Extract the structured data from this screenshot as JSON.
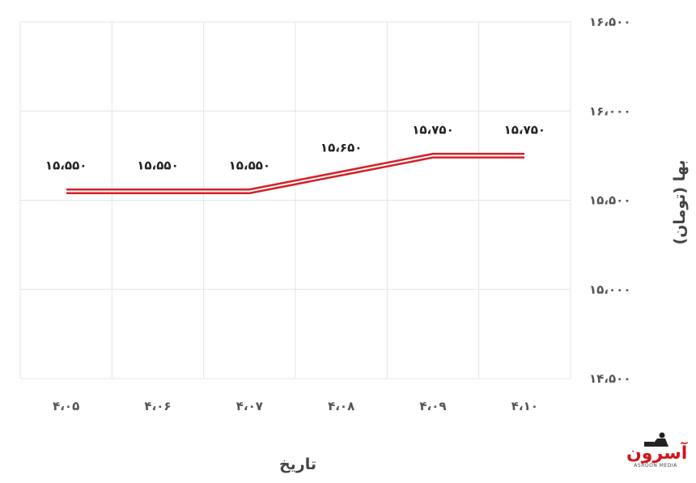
{
  "chart_data": {
    "type": "line",
    "categories": [
      "۴،۰۵",
      "۴،۰۶",
      "۴،۰۷",
      "۴،۰۸",
      "۴،۰۹",
      "۴،۱۰"
    ],
    "series": [
      {
        "values": [
          15550,
          15550,
          15550,
          15650,
          15750,
          15750
        ]
      }
    ],
    "data_labels": [
      "۱۵،۵۵۰",
      "۱۵،۵۵۰",
      "۱۵،۵۵۰",
      "۱۵،۶۵۰",
      "۱۵،۷۵۰",
      "۱۵،۷۵۰"
    ],
    "y_ticks": [
      14500,
      15000,
      15500,
      16000,
      16500
    ],
    "y_tick_labels": [
      "۱۴،۵۰۰",
      "۱۵،۰۰۰",
      "۱۵،۵۰۰",
      "۱۶،۰۰۰",
      "۱۶،۵۰۰"
    ],
    "ylim": [
      14500,
      16500
    ],
    "xlabel": "تاریخ",
    "ylabel": "بها (تومان)",
    "grid": true,
    "y_axis_side": "right",
    "line_color": "#d61f26"
  },
  "logo": {
    "text": "آسرون",
    "subtext": "ASROON MEDIA"
  }
}
